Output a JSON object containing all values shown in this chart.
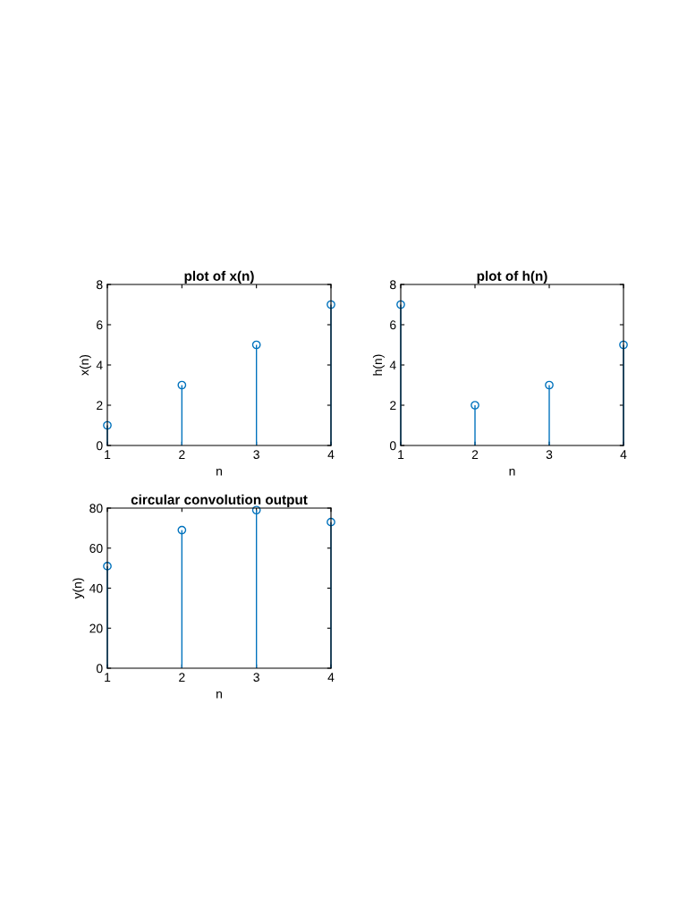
{
  "chart_data": [
    {
      "type": "lollipop",
      "title": "plot of x(n)",
      "xlabel": "n",
      "ylabel": "x(n)",
      "x": [
        1,
        2,
        3,
        4
      ],
      "series": [
        {
          "color": "#0072bd",
          "values": [
            1,
            3,
            5,
            7
          ]
        }
      ],
      "xlim": [
        1,
        4
      ],
      "ylim": [
        0,
        8
      ],
      "xticks": [
        1,
        2,
        3,
        4
      ],
      "yticks": [
        0,
        2,
        4,
        6,
        8
      ],
      "marker": "circle"
    },
    {
      "type": "lollipop",
      "title": "plot of h(n)",
      "xlabel": "n",
      "ylabel": "h(n)",
      "x": [
        1,
        2,
        3,
        4
      ],
      "series": [
        {
          "color": "#0072bd",
          "values": [
            7,
            2,
            3,
            5
          ]
        }
      ],
      "xlim": [
        1,
        4
      ],
      "ylim": [
        0,
        8
      ],
      "xticks": [
        1,
        2,
        3,
        4
      ],
      "yticks": [
        0,
        2,
        4,
        6,
        8
      ],
      "marker": "circle"
    },
    {
      "type": "lollipop",
      "title": "circular convolution output",
      "xlabel": "n",
      "ylabel": "y(n)",
      "x": [
        1,
        2,
        3,
        4
      ],
      "series": [
        {
          "color": "#0072bd",
          "values": [
            51,
            69,
            79,
            73
          ]
        }
      ],
      "xlim": [
        1,
        4
      ],
      "ylim": [
        0,
        80
      ],
      "xticks": [
        1,
        2,
        3,
        4
      ],
      "yticks": [
        0,
        20,
        40,
        60,
        80
      ],
      "marker": "circle"
    }
  ]
}
